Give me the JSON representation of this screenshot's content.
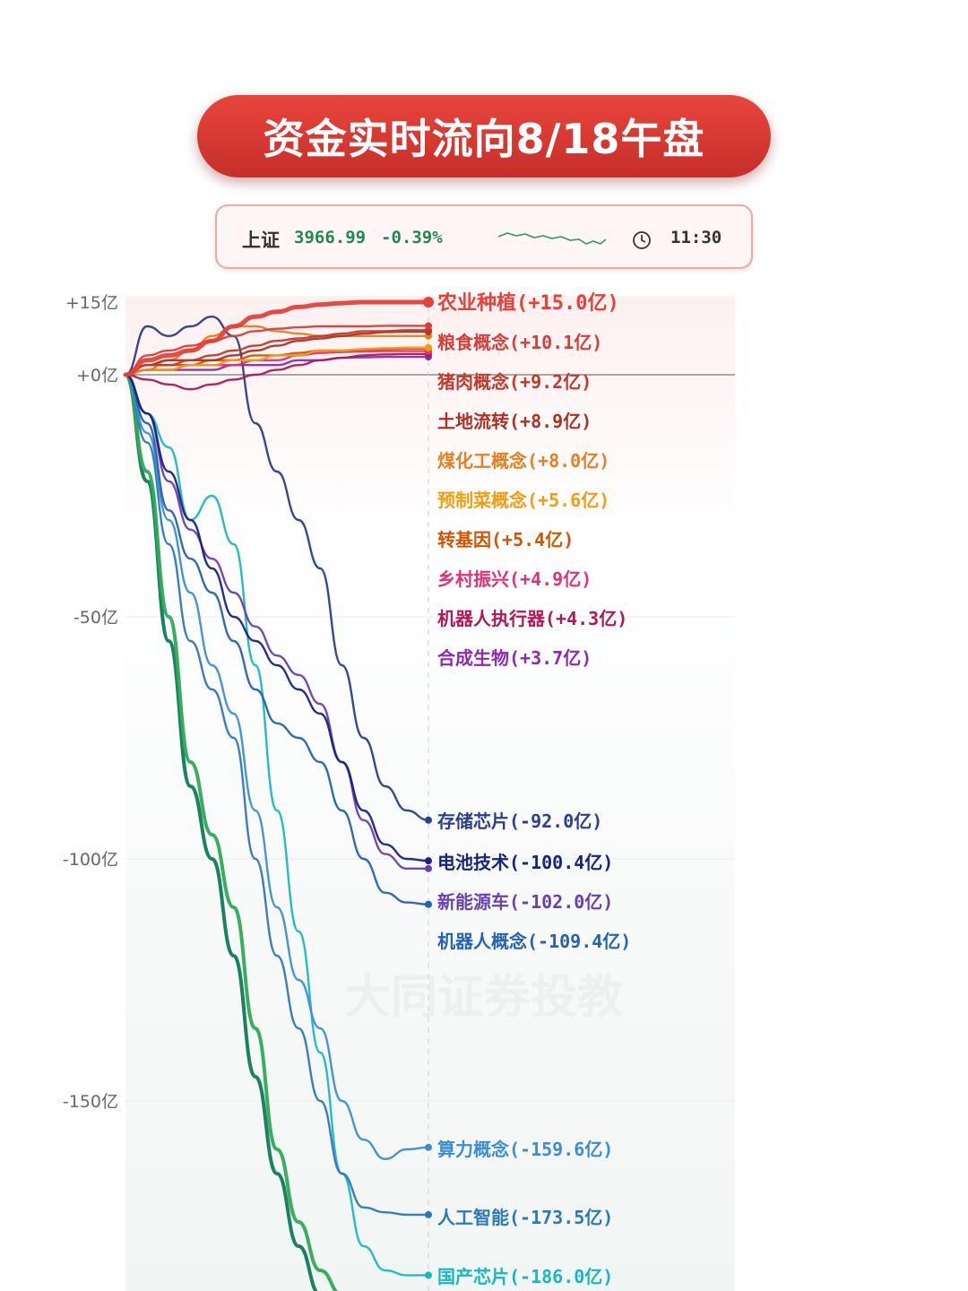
{
  "title": "资金实时流向8/18午盘",
  "index": {
    "name": "上证",
    "value": "3966.99",
    "change": "-0.39%",
    "time": "11:30",
    "up_color": "#1e8a52"
  },
  "watermark": "大同证券投教",
  "chart_data": {
    "type": "line",
    "unit": "亿",
    "y_ticks": [
      15,
      0,
      -50,
      -100,
      -150
    ],
    "y_tick_labels": [
      "+15亿",
      "+0亿",
      "-50亿",
      "-100亿",
      "-150亿"
    ],
    "ylim": [
      -190,
      18
    ],
    "grid": true,
    "series": [
      {
        "name": "农业种植",
        "label": "(+15.0亿)",
        "color": "#e5403a",
        "final": 15.0,
        "values": [
          0,
          3,
          4,
          5,
          7,
          10,
          12,
          13,
          14,
          14.5,
          14.8,
          15,
          15,
          15,
          15.0
        ]
      },
      {
        "name": "粮食概念",
        "label": "(+10.1亿)",
        "color": "#d43f3a",
        "final": 10.1,
        "values": [
          0,
          4,
          5,
          6,
          7,
          8,
          9,
          9.5,
          9.8,
          10,
          10,
          10,
          10.1,
          10.1,
          10.1
        ]
      },
      {
        "name": "猪肉概念",
        "label": "(+9.2亿)",
        "color": "#c0392b",
        "final": 9.2,
        "values": [
          0,
          2,
          2,
          3,
          4,
          5,
          6,
          7,
          7.5,
          8,
          8.5,
          9,
          9,
          9.2,
          9.2
        ]
      },
      {
        "name": "土地流转",
        "label": "(+8.9亿)",
        "color": "#a93226",
        "final": 8.9,
        "values": [
          0,
          2,
          3,
          3,
          3,
          4,
          5,
          6,
          7,
          7.5,
          8,
          8.5,
          8.8,
          8.9,
          8.9
        ]
      },
      {
        "name": "煤化工概念",
        "label": "(+8.0亿)",
        "color": "#e67e22",
        "final": 8.0,
        "values": [
          0,
          1,
          3,
          5,
          8,
          10,
          10,
          9,
          8.5,
          8,
          8,
          8,
          8,
          8,
          8.0
        ]
      },
      {
        "name": "预制菜概念",
        "label": "(+5.6亿)",
        "color": "#f39c12",
        "final": 5.6,
        "values": [
          0,
          1,
          1,
          2,
          2,
          3,
          3,
          4,
          4,
          5,
          5,
          5.3,
          5.5,
          5.6,
          5.6
        ]
      },
      {
        "name": "转基因",
        "label": "(+5.4亿)",
        "color": "#d35400",
        "final": 5.4,
        "values": [
          0,
          2,
          2,
          2,
          3,
          3,
          4,
          4,
          4.5,
          5,
          5,
          5.2,
          5.3,
          5.4,
          5.4
        ]
      },
      {
        "name": "乡村振兴",
        "label": "(+4.9亿)",
        "color": "#e0307a",
        "final": 4.9,
        "values": [
          0,
          1,
          1,
          2,
          2,
          2,
          3,
          3,
          4,
          4.5,
          4.7,
          4.8,
          4.9,
          4.9,
          4.9
        ]
      },
      {
        "name": "机器人执行器",
        "label": "(+4.3亿)",
        "color": "#b0185a",
        "final": 4.3,
        "values": [
          0,
          -1,
          -2,
          -3,
          -2,
          -1,
          0,
          1,
          2,
          3,
          3.5,
          4,
          4.2,
          4.3,
          4.3
        ]
      },
      {
        "name": "合成生物",
        "label": "(+3.7亿)",
        "color": "#8e2ab0",
        "final": 3.7,
        "values": [
          0,
          1,
          1,
          1,
          1,
          2,
          2,
          2,
          3,
          3,
          3.5,
          3.6,
          3.7,
          3.7,
          3.7
        ]
      },
      {
        "name": "存储芯片",
        "label": "(-92.0亿)",
        "color": "#2c3e8c",
        "final": -92.0,
        "values": [
          0,
          10,
          8,
          10,
          12,
          8,
          -10,
          -20,
          -30,
          -40,
          -60,
          -75,
          -85,
          -90,
          -92.0
        ]
      },
      {
        "name": "电池技术",
        "label": "(-100.4亿)",
        "color": "#1a237e",
        "final": -100.4,
        "values": [
          0,
          -8,
          -20,
          -30,
          -40,
          -50,
          -55,
          -60,
          -65,
          -70,
          -80,
          -90,
          -97,
          -100,
          -100.4
        ]
      },
      {
        "name": "新能源车",
        "label": "(-102.0亿)",
        "color": "#6a3fb0",
        "final": -102.0,
        "values": [
          0,
          -8,
          -22,
          -32,
          -38,
          -45,
          -52,
          -58,
          -62,
          -68,
          -80,
          -92,
          -99,
          -102,
          -102.0
        ]
      },
      {
        "name": "机器人概念",
        "label": "(-109.4亿)",
        "color": "#2563ae",
        "final": -109.4,
        "values": [
          0,
          -10,
          -28,
          -38,
          -45,
          -55,
          -65,
          -72,
          -75,
          -80,
          -90,
          -100,
          -107,
          -109,
          -109.4
        ]
      },
      {
        "name": "算力概念",
        "label": "(-159.6亿)",
        "color": "#3b8fd0",
        "final": -159.6,
        "values": [
          0,
          -12,
          -30,
          -45,
          -60,
          -70,
          -90,
          -110,
          -125,
          -135,
          -150,
          -158,
          -162,
          -160,
          -159.6
        ]
      },
      {
        "name": "人工智能",
        "label": "(-173.5亿)",
        "color": "#2f78b8",
        "final": -173.5,
        "values": [
          0,
          -14,
          -35,
          -55,
          -65,
          -75,
          -100,
          -120,
          -135,
          -150,
          -165,
          -172,
          -173,
          -173.5,
          -173.5
        ]
      },
      {
        "name": "国产芯片",
        "label": "(-186.0亿)",
        "color": "#17b8c4",
        "final": -186.0,
        "values": [
          0,
          -8,
          -15,
          -30,
          -25,
          -35,
          -60,
          -90,
          -115,
          -140,
          -165,
          -180,
          -185,
          -186,
          -186.0
        ]
      },
      {
        "name": "",
        "label": "",
        "color": "#2eaa5a",
        "final": -195,
        "values": [
          0,
          -20,
          -50,
          -80,
          -95,
          -110,
          -135,
          -160,
          -175,
          -185,
          -190,
          -192,
          -194,
          -195,
          -195
        ]
      },
      {
        "name": "",
        "label": "",
        "color": "#0e7a5a",
        "final": -200,
        "values": [
          0,
          -22,
          -55,
          -85,
          -100,
          -120,
          -145,
          -165,
          -180,
          -190,
          -195,
          -198,
          -199,
          -200,
          -200
        ]
      }
    ]
  }
}
